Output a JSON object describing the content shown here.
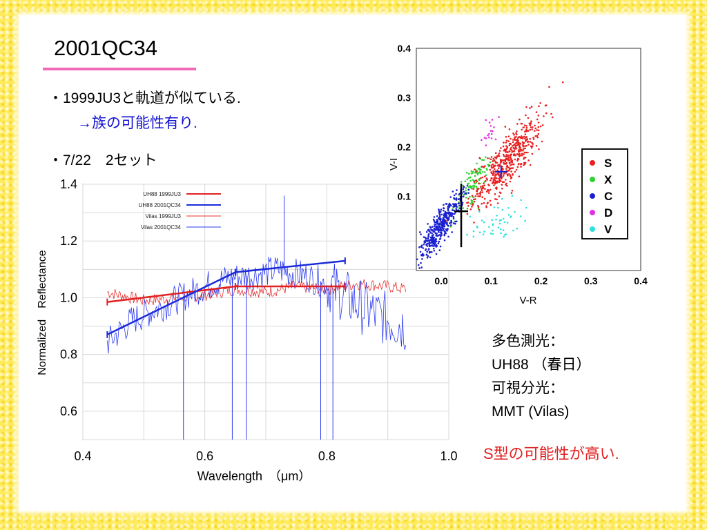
{
  "slide": {
    "title": "2001QC34",
    "bullets": [
      "・1999JU3と軌道が似ている.",
      "→族の可能性有り.",
      "・7/22　2セット"
    ],
    "info_lines": [
      "多色測光：",
      "UH88 （春日）",
      "可視分光：",
      "MMT (Vilas)"
    ],
    "conclusion": "S型の可能性が高い.",
    "colors": {
      "accent_underline": "#f06ab6",
      "blue_text": "#1010d0",
      "red_text": "#e02020",
      "border": "#ffeb5a"
    }
  },
  "chart_data": [
    {
      "type": "line",
      "xlabel": "Wavelength　（μm）",
      "ylabel": "Normalized　Reflectance",
      "xlim": [
        0.4,
        1.0
      ],
      "ylim": [
        0.5,
        1.4
      ],
      "x_ticks": [
        "0.4",
        "0.6",
        "0.8",
        "1.0"
      ],
      "y_ticks": [
        "1.4",
        "1.2",
        "1.0",
        "0.8",
        "0.6"
      ],
      "grid": true,
      "legend_position": "top-left",
      "series": [
        {
          "name": "UH88 1999JU3",
          "color": "#e02020",
          "style": "line-marker",
          "x": [
            0.44,
            0.65,
            0.83
          ],
          "y": [
            0.985,
            1.04,
            1.04
          ]
        },
        {
          "name": "UH88 2001QC34",
          "color": "#1a2ad8",
          "style": "line-marker",
          "x": [
            0.44,
            0.65,
            0.83
          ],
          "y": [
            0.87,
            1.09,
            1.13
          ]
        },
        {
          "name": "Vilas 1999JU3",
          "color": "#e83030",
          "style": "noisy-thin",
          "x": [
            0.44,
            0.5,
            0.55,
            0.6,
            0.65,
            0.7,
            0.75,
            0.8,
            0.85,
            0.9,
            0.93
          ],
          "y": [
            1.02,
            0.99,
            1.0,
            1.01,
            1.03,
            1.02,
            1.04,
            1.03,
            1.05,
            1.04,
            1.03
          ]
        },
        {
          "name": "Vilas 2001QC34",
          "color": "#2a3af0",
          "style": "noisy-thin",
          "x": [
            0.44,
            0.48,
            0.52,
            0.56,
            0.6,
            0.64,
            0.68,
            0.72,
            0.76,
            0.8,
            0.84,
            0.88,
            0.93
          ],
          "y": [
            0.84,
            0.92,
            0.96,
            1.0,
            1.04,
            1.07,
            1.08,
            1.1,
            1.08,
            1.05,
            0.99,
            0.94,
            0.9
          ]
        }
      ]
    },
    {
      "type": "scatter",
      "xlabel": "V-R",
      "ylabel": "V-I",
      "xlim": [
        -0.05,
        0.4
      ],
      "ylim": [
        -0.05,
        0.4
      ],
      "x_ticks": [
        "0.0",
        "0.1",
        "0.2",
        "0.3",
        "0.4"
      ],
      "y_ticks": [
        "0.4",
        "0.3",
        "0.2",
        "0.1"
      ],
      "legend_position": "right",
      "series": [
        {
          "name": "S",
          "color": "#e82020",
          "center": [
            0.13,
            0.17
          ]
        },
        {
          "name": "X",
          "color": "#30d030",
          "center": [
            0.06,
            0.12
          ]
        },
        {
          "name": "C",
          "color": "#1a20d0",
          "center": [
            0.0,
            0.04
          ]
        },
        {
          "name": "D",
          "color": "#e030e0",
          "center": [
            0.1,
            0.23
          ]
        },
        {
          "name": "V",
          "color": "#30e0e0",
          "center": [
            0.12,
            0.05
          ]
        }
      ],
      "markers": [
        {
          "x": 0.04,
          "y": 0.07,
          "color": "#000000"
        },
        {
          "x": 0.12,
          "y": 0.15,
          "color": "#1a20d0"
        }
      ]
    }
  ]
}
